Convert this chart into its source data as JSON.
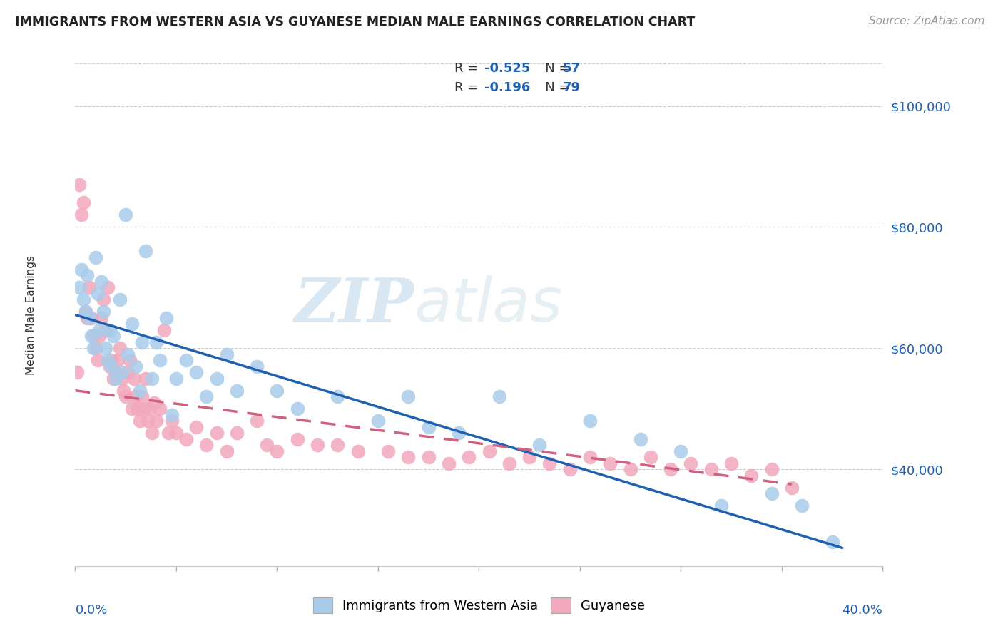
{
  "title": "IMMIGRANTS FROM WESTERN ASIA VS GUYANESE MEDIAN MALE EARNINGS CORRELATION CHART",
  "source": "Source: ZipAtlas.com",
  "ylabel": "Median Male Earnings",
  "yticks": [
    40000,
    60000,
    80000,
    100000
  ],
  "ytick_labels": [
    "$40,000",
    "$60,000",
    "$80,000",
    "$100,000"
  ],
  "xlim": [
    0.0,
    0.4
  ],
  "ylim": [
    24000,
    107000
  ],
  "blue_R": "-0.525",
  "blue_N": "57",
  "pink_R": "-0.196",
  "pink_N": "79",
  "legend_label1": "Immigrants from Western Asia",
  "legend_label2": "Guyanese",
  "blue_color": "#A8CCEA",
  "pink_color": "#F2A8BC",
  "blue_line_color": "#2060B0",
  "pink_line_color": "#D06080",
  "watermark_zip": "ZIP",
  "watermark_atlas": "atlas",
  "blue_scatter_x": [
    0.002,
    0.003,
    0.004,
    0.005,
    0.006,
    0.007,
    0.008,
    0.009,
    0.01,
    0.011,
    0.012,
    0.013,
    0.014,
    0.015,
    0.016,
    0.017,
    0.018,
    0.019,
    0.02,
    0.022,
    0.023,
    0.025,
    0.026,
    0.028,
    0.03,
    0.032,
    0.033,
    0.035,
    0.038,
    0.04,
    0.042,
    0.045,
    0.048,
    0.05,
    0.055,
    0.06,
    0.065,
    0.07,
    0.075,
    0.08,
    0.09,
    0.1,
    0.11,
    0.13,
    0.15,
    0.165,
    0.175,
    0.19,
    0.21,
    0.23,
    0.255,
    0.28,
    0.3,
    0.32,
    0.345,
    0.36,
    0.375
  ],
  "blue_scatter_y": [
    70000,
    73000,
    68000,
    66000,
    72000,
    65000,
    62000,
    60000,
    75000,
    69000,
    63000,
    71000,
    66000,
    60000,
    58000,
    63000,
    57000,
    62000,
    55000,
    68000,
    56000,
    82000,
    59000,
    64000,
    57000,
    53000,
    61000,
    76000,
    55000,
    61000,
    58000,
    65000,
    49000,
    55000,
    58000,
    56000,
    52000,
    55000,
    59000,
    53000,
    57000,
    53000,
    50000,
    52000,
    48000,
    52000,
    47000,
    46000,
    52000,
    44000,
    48000,
    45000,
    43000,
    34000,
    36000,
    34000,
    28000
  ],
  "pink_scatter_x": [
    0.001,
    0.002,
    0.003,
    0.004,
    0.005,
    0.006,
    0.007,
    0.008,
    0.009,
    0.01,
    0.011,
    0.012,
    0.013,
    0.014,
    0.015,
    0.016,
    0.017,
    0.018,
    0.019,
    0.02,
    0.021,
    0.022,
    0.023,
    0.024,
    0.025,
    0.026,
    0.027,
    0.028,
    0.029,
    0.03,
    0.031,
    0.032,
    0.033,
    0.034,
    0.035,
    0.036,
    0.037,
    0.038,
    0.039,
    0.04,
    0.042,
    0.044,
    0.046,
    0.048,
    0.05,
    0.055,
    0.06,
    0.065,
    0.07,
    0.075,
    0.08,
    0.09,
    0.095,
    0.1,
    0.11,
    0.12,
    0.13,
    0.14,
    0.155,
    0.165,
    0.175,
    0.185,
    0.195,
    0.205,
    0.215,
    0.225,
    0.235,
    0.245,
    0.255,
    0.265,
    0.275,
    0.285,
    0.295,
    0.305,
    0.315,
    0.325,
    0.335,
    0.345,
    0.355
  ],
  "pink_scatter_y": [
    56000,
    87000,
    82000,
    84000,
    66000,
    65000,
    70000,
    65000,
    62000,
    60000,
    58000,
    62000,
    65000,
    68000,
    63000,
    70000,
    57000,
    58000,
    55000,
    56000,
    58000,
    60000,
    55000,
    53000,
    52000,
    56000,
    58000,
    50000,
    55000,
    52000,
    50000,
    48000,
    52000,
    50000,
    55000,
    48000,
    50000,
    46000,
    51000,
    48000,
    50000,
    63000,
    46000,
    48000,
    46000,
    45000,
    47000,
    44000,
    46000,
    43000,
    46000,
    48000,
    44000,
    43000,
    45000,
    44000,
    44000,
    43000,
    43000,
    42000,
    42000,
    41000,
    42000,
    43000,
    41000,
    42000,
    41000,
    40000,
    42000,
    41000,
    40000,
    42000,
    40000,
    41000,
    40000,
    41000,
    39000,
    40000,
    37000
  ],
  "blue_line_x0": 0.0,
  "blue_line_y0": 65500,
  "blue_line_x1": 0.38,
  "blue_line_y1": 27000,
  "pink_line_x0": 0.0,
  "pink_line_y0": 53000,
  "pink_line_x1": 0.355,
  "pink_line_y1": 37500
}
